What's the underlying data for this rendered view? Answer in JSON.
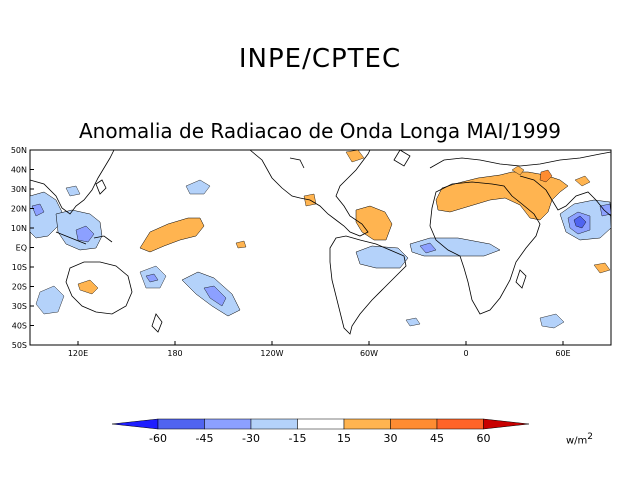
{
  "header": {
    "institution": "INPE/CPTEC",
    "title": "Anomalia de Radiacao de Onda Longa MAI/1999"
  },
  "map": {
    "lat_labels": [
      "50N",
      "40N",
      "30N",
      "20N",
      "10N",
      "EQ",
      "10S",
      "20S",
      "30S",
      "40S",
      "50S"
    ],
    "lon_labels": [
      "120E",
      "180",
      "120W",
      "60W",
      "0",
      "60E"
    ]
  },
  "colorbar": {
    "labels": [
      "-60",
      "-45",
      "-30",
      "-15",
      "15",
      "30",
      "45",
      "60"
    ],
    "colors": [
      "#1e1eff",
      "#5064f0",
      "#8ca0ff",
      "#b4d2fa",
      "#ffffff",
      "#ffb450",
      "#ff8c32",
      "#ff6428",
      "#ff2d14",
      "#c80000"
    ],
    "units_base": "w/m",
    "units_exp": "2"
  }
}
